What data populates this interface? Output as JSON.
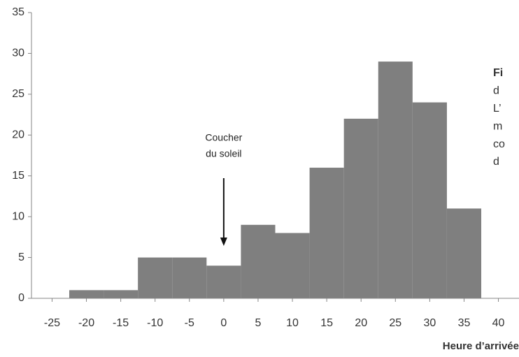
{
  "chart_data": {
    "type": "histogram",
    "bins": [
      -22.5,
      -17.5,
      -12.5,
      -7.5,
      -2.5,
      2.5,
      7.5,
      12.5,
      17.5,
      22.5,
      27.5,
      32.5,
      37.5
    ],
    "values": [
      1,
      1,
      5,
      5,
      4,
      9,
      8,
      16,
      22,
      29,
      24,
      11
    ],
    "color": "#7f7f7f",
    "xlim": [
      -28,
      43
    ],
    "xticks": [
      -25,
      -20,
      -15,
      -10,
      -5,
      0,
      5,
      10,
      15,
      20,
      25,
      30,
      35,
      40
    ],
    "ylim": [
      0,
      35
    ],
    "yticks": [
      0,
      5,
      10,
      15,
      20,
      25,
      30,
      35
    ],
    "grid": false,
    "xlabel": "Heure d’arrivée",
    "annotation": {
      "lines": [
        "Coucher",
        "du soleil"
      ],
      "x": 0
    },
    "caption_lines": [
      "Fi",
      "d",
      "L’",
      "m",
      "co",
      "d"
    ]
  }
}
